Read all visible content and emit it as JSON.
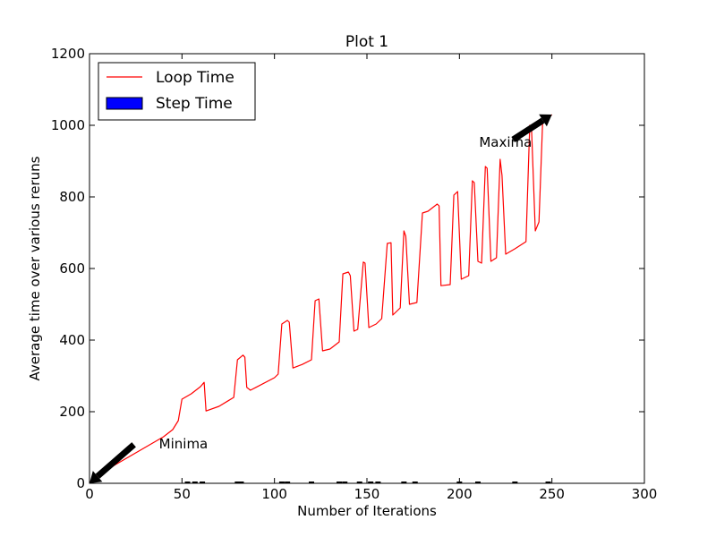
{
  "chart_data": {
    "type": "line",
    "title": "Plot 1",
    "xlabel": "Number of Iterations",
    "ylabel": "Average time over various reruns",
    "xlim": [
      0,
      300
    ],
    "ylim": [
      0,
      1200
    ],
    "x_ticks": [
      "0",
      "50",
      "100",
      "150",
      "200",
      "250",
      "300"
    ],
    "y_ticks": [
      "0",
      "200",
      "400",
      "600",
      "800",
      "1000",
      "1200"
    ],
    "grid": false,
    "legend": {
      "placement": "top-left",
      "entries": [
        "Loop Time",
        "Step Time"
      ]
    },
    "colors": {
      "loop": "#ff0000",
      "step": "#0000ff",
      "arrow": "#000000"
    },
    "series": [
      {
        "name": "Loop Time",
        "style": "line",
        "points": [
          [
            0,
            3
          ],
          [
            3,
            15
          ],
          [
            10,
            40
          ],
          [
            20,
            70
          ],
          [
            30,
            100
          ],
          [
            40,
            130
          ],
          [
            45,
            150
          ],
          [
            48,
            175
          ],
          [
            50,
            235
          ],
          [
            55,
            250
          ],
          [
            60,
            270
          ],
          [
            62,
            282
          ],
          [
            63,
            202
          ],
          [
            70,
            215
          ],
          [
            78,
            240
          ],
          [
            80,
            345
          ],
          [
            83,
            358
          ],
          [
            84,
            352
          ],
          [
            85,
            268
          ],
          [
            87,
            260
          ],
          [
            90,
            268
          ],
          [
            100,
            295
          ],
          [
            102,
            305
          ],
          [
            104,
            445
          ],
          [
            107,
            455
          ],
          [
            108,
            450
          ],
          [
            110,
            322
          ],
          [
            115,
            332
          ],
          [
            120,
            345
          ],
          [
            122,
            510
          ],
          [
            124,
            515
          ],
          [
            126,
            370
          ],
          [
            130,
            375
          ],
          [
            135,
            395
          ],
          [
            137,
            585
          ],
          [
            140,
            590
          ],
          [
            141,
            580
          ],
          [
            143,
            425
          ],
          [
            145,
            430
          ],
          [
            148,
            618
          ],
          [
            149,
            615
          ],
          [
            151,
            435
          ],
          [
            155,
            445
          ],
          [
            158,
            460
          ],
          [
            161,
            670
          ],
          [
            163,
            672
          ],
          [
            164,
            470
          ],
          [
            168,
            490
          ],
          [
            170,
            705
          ],
          [
            171,
            690
          ],
          [
            173,
            500
          ],
          [
            177,
            505
          ],
          [
            180,
            755
          ],
          [
            183,
            760
          ],
          [
            188,
            780
          ],
          [
            189,
            775
          ],
          [
            190,
            552
          ],
          [
            195,
            555
          ],
          [
            197,
            805
          ],
          [
            199,
            815
          ],
          [
            201,
            570
          ],
          [
            205,
            580
          ],
          [
            207,
            845
          ],
          [
            208,
            840
          ],
          [
            210,
            620
          ],
          [
            212,
            615
          ],
          [
            214,
            885
          ],
          [
            215,
            880
          ],
          [
            217,
            620
          ],
          [
            220,
            630
          ],
          [
            222,
            905
          ],
          [
            223,
            860
          ],
          [
            225,
            640
          ],
          [
            230,
            655
          ],
          [
            236,
            675
          ],
          [
            238,
            1000
          ],
          [
            239,
            990
          ],
          [
            241,
            705
          ],
          [
            243,
            730
          ],
          [
            245,
            1010
          ],
          [
            247,
            1015
          ],
          [
            250,
            1030
          ]
        ]
      },
      {
        "name": "Step Time",
        "style": "bar",
        "values_note": "near-zero step times along the x-axis",
        "points": [
          [
            53,
            2
          ],
          [
            57,
            2
          ],
          [
            61,
            2
          ],
          [
            80,
            2
          ],
          [
            82,
            2
          ],
          [
            104,
            3
          ],
          [
            107,
            3
          ],
          [
            120,
            2
          ],
          [
            135,
            2
          ],
          [
            138,
            2
          ],
          [
            146,
            2
          ],
          [
            152,
            2
          ],
          [
            156,
            2
          ],
          [
            170,
            2
          ],
          [
            176,
            2
          ],
          [
            200,
            2
          ],
          [
            210,
            2
          ],
          [
            230,
            2
          ],
          [
            248,
            2
          ]
        ]
      }
    ],
    "annotations": [
      {
        "text": "Minima",
        "point": [
          0,
          0
        ],
        "text_at": [
          25,
          110
        ]
      },
      {
        "text": "Maxima",
        "point": [
          250,
          1030
        ],
        "text_at": [
          230,
          960
        ]
      }
    ]
  }
}
